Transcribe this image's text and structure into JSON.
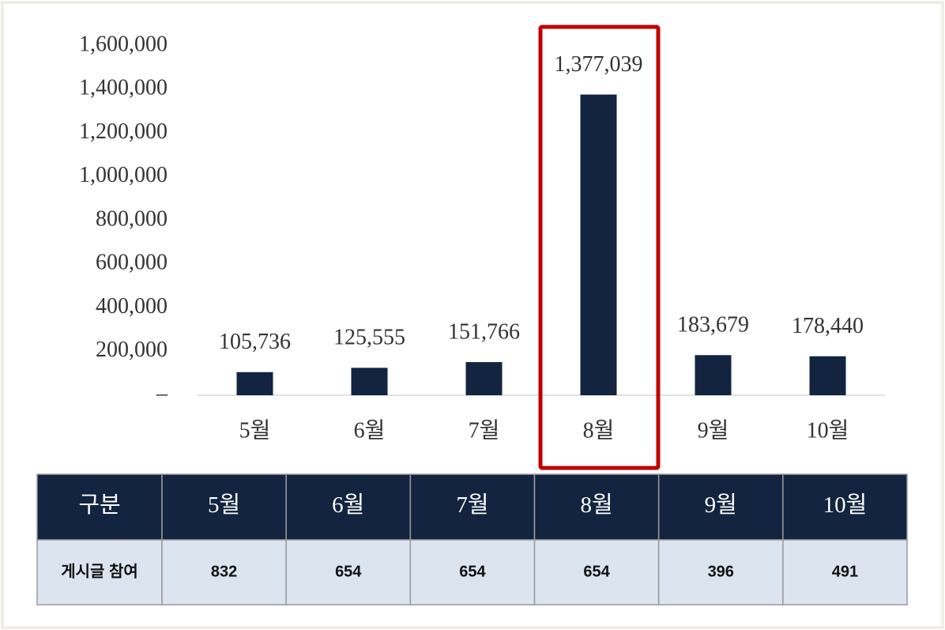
{
  "chart_data": {
    "type": "bar",
    "categories": [
      "5월",
      "6월",
      "7월",
      "8월",
      "9월",
      "10월"
    ],
    "values": [
      105736,
      125555,
      151766,
      1377039,
      183679,
      178440
    ],
    "value_labels": [
      "105,736",
      "125,555",
      "151,766",
      "1,377,039",
      "183,679",
      "178,440"
    ],
    "color": "#12243f",
    "ylim": [
      0,
      1600000
    ],
    "yticks": [
      {
        "value": 0,
        "label": "–"
      },
      {
        "value": 200000,
        "label": "200,000"
      },
      {
        "value": 400000,
        "label": "400,000"
      },
      {
        "value": 600000,
        "label": "600,000"
      },
      {
        "value": 800000,
        "label": "800,000"
      },
      {
        "value": 1000000,
        "label": "1,000,000"
      },
      {
        "value": 1200000,
        "label": "1,200,000"
      },
      {
        "value": 1400000,
        "label": "1,400,000"
      },
      {
        "value": 1600000,
        "label": "1,600,000"
      }
    ],
    "grid": false
  },
  "table": {
    "header": [
      "구분",
      "5월",
      "6월",
      "7월",
      "8월",
      "9월",
      "10월"
    ],
    "rows": [
      [
        "게시글 참여",
        "832",
        "654",
        "654",
        "654",
        "396",
        "491"
      ]
    ]
  }
}
